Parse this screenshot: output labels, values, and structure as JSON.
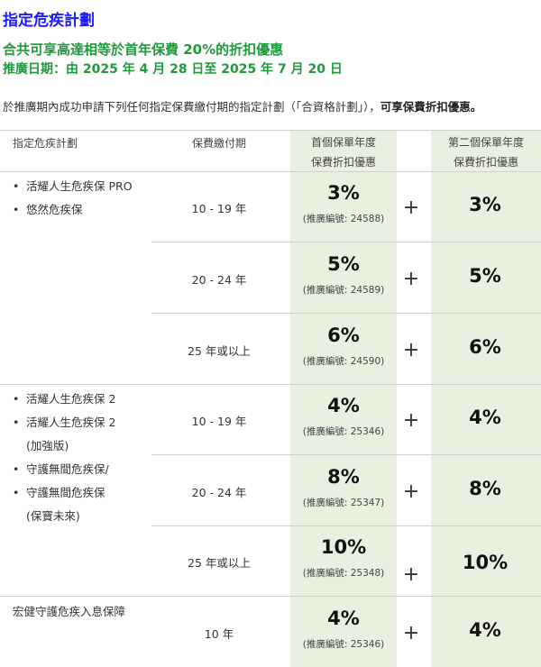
{
  "header": {
    "title": "指定危疾計劃",
    "headline": "合共可享高達相等於首年保費 20%的折扣優惠",
    "period": "推廣日期：由 2025 年 4 月 28 日至 2025 年 7 月 20 日",
    "intro_text": "於推廣期內成功申請下列任何指定保費繳付期的指定計劃（「合資格計劃」），",
    "intro_bold": "可享保費折扣優惠。"
  },
  "table": {
    "headers": {
      "plan": "指定危疾計劃",
      "term": "保費繳付期",
      "first_year_line1": "首個保單年度",
      "first_year_line2": "保費折扣優惠",
      "second_year_line1": "第二個保單年度",
      "second_year_line2": "保費折扣優惠"
    },
    "groups": [
      {
        "plans": [
          "活耀人生危疾保 PRO",
          "悠然危疾保"
        ],
        "rows": [
          {
            "term": "10 - 19 年",
            "first": "3%",
            "ref": "(推廣編號: 24588)",
            "second": "3%"
          },
          {
            "term": "20 - 24 年",
            "first": "5%",
            "ref": "(推廣編號: 24589)",
            "second": "5%"
          },
          {
            "term": "25 年或以上",
            "first": "6%",
            "ref": "(推廣編號: 24590)",
            "second": "6%"
          }
        ]
      },
      {
        "plans": [
          "活耀人生危疾保 2",
          "活耀人生危疾保 2",
          "(加強版)",
          "守護無間危疾保/",
          "守護無間危疾保",
          "(保寶未來)"
        ],
        "rows": [
          {
            "term": "10 - 19 年",
            "first": "4%",
            "ref": "(推廣編號: 25346)",
            "second": "4%"
          },
          {
            "term": "20 - 24 年",
            "first": "8%",
            "ref": "(推廣編號: 25347)",
            "second": "8%"
          },
          {
            "term": "25 年或以上",
            "first": "10%",
            "ref": "(推廣編號: 25348)",
            "second": "10%"
          }
        ]
      },
      {
        "plans": [
          "宏健守護危疾入息保障"
        ],
        "rows": [
          {
            "term": "10 年",
            "first": "4%",
            "ref": "(推廣編號: 25346)",
            "second": "4%"
          }
        ]
      }
    ],
    "plus_symbol": "+",
    "bullet_symbol": "•"
  },
  "colors": {
    "title": "#1a1aff",
    "headline": "#1e9a3c",
    "highlight_column": "#e9f0df"
  }
}
